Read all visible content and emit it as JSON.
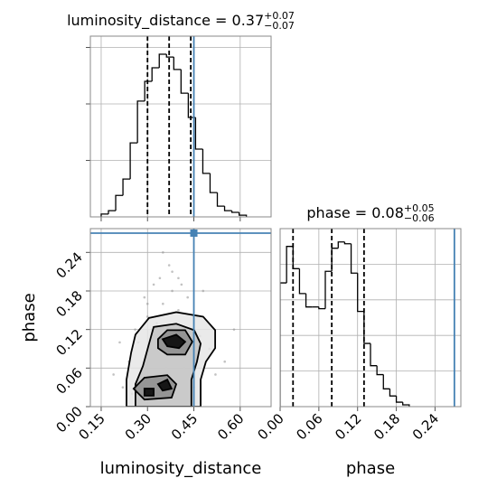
{
  "chart_data": [
    {
      "type": "histogram",
      "title": "luminosity_distance = 0.37",
      "title_sup": "+0.07",
      "title_sub": "−0.07",
      "bins": [
        0.15,
        0.1735,
        0.197,
        0.2205,
        0.244,
        0.2675,
        0.291,
        0.3145,
        0.338,
        0.3615,
        0.385,
        0.4085,
        0.432,
        0.4555,
        0.479,
        0.5025,
        0.526,
        0.5495,
        0.573,
        0.5965,
        0.62
      ],
      "values": [
        0.05,
        0.11,
        0.38,
        0.67,
        1.31,
        2.05,
        2.4,
        2.64,
        2.88,
        2.83,
        2.61,
        2.19,
        1.76,
        1.2,
        0.77,
        0.43,
        0.19,
        0.11,
        0.08,
        0.03
      ],
      "color": "#000000",
      "quantiles": [
        0.3,
        0.37,
        0.44
      ],
      "truth": 0.45,
      "truth_color": "#4682b4",
      "xlim": [
        0.115,
        0.7
      ],
      "ylim": [
        0,
        3.2
      ],
      "xticks": [
        0.15,
        0.3,
        0.45,
        0.6
      ],
      "yticks": [
        1,
        2,
        3
      ],
      "grid": true
    },
    {
      "type": "scatter",
      "xlabel": "luminosity_distance",
      "ylabel": "phase",
      "x": [
        0.25,
        0.28,
        0.31,
        0.33,
        0.35,
        0.38,
        0.4,
        0.42,
        0.27,
        0.3,
        0.34,
        0.37,
        0.41,
        0.44,
        0.47,
        0.22,
        0.24,
        0.29,
        0.32,
        0.36,
        0.39,
        0.43,
        0.46,
        0.5,
        0.52,
        0.26,
        0.33,
        0.38,
        0.45,
        0.21,
        0.55,
        0.3,
        0.35,
        0.4,
        0.48,
        0.28,
        0.37,
        0.42,
        0.19,
        0.58
      ],
      "y": [
        0.02,
        0.05,
        0.09,
        0.13,
        0.16,
        0.18,
        0.15,
        0.12,
        0.1,
        0.14,
        0.2,
        0.22,
        0.19,
        0.08,
        0.11,
        0.03,
        0.07,
        0.17,
        0.19,
        0.06,
        0.04,
        0.17,
        0.14,
        0.09,
        0.05,
        0.12,
        0.01,
        0.21,
        0.03,
        0.1,
        0.07,
        0.16,
        0.24,
        0.2,
        0.18,
        0.01,
        0.08,
        0.06,
        0.05,
        0.12
      ],
      "color": "#9a9a9a",
      "contours": [
        {
          "x": [
            0.232,
            0.232,
            0.247,
            0.261,
            0.305,
            0.393,
            0.48,
            0.519,
            0.519,
            0.489,
            0.472,
            0.472
          ],
          "y": [
            0,
            0.042,
            0.084,
            0.112,
            0.138,
            0.147,
            0.14,
            0.119,
            0.091,
            0.07,
            0.042,
            0
          ],
          "fill": "#e6e6e6"
        },
        {
          "x": [
            0.261,
            0.261,
            0.285,
            0.305,
            0.32,
            0.393,
            0.451,
            0.472,
            0.46,
            0.442,
            0.442
          ],
          "y": [
            0,
            0.035,
            0.063,
            0.098,
            0.124,
            0.129,
            0.119,
            0.098,
            0.07,
            0.042,
            0
          ],
          "fill": "#c4c4c4"
        },
        {
          "x": [
            0.334,
            0.364,
            0.422,
            0.445,
            0.422,
            0.364,
            0.334
          ],
          "y": [
            0.105,
            0.119,
            0.119,
            0.101,
            0.081,
            0.081,
            0.091
          ],
          "fill": "#8c8c8c"
        },
        {
          "x": [
            0.255,
            0.29,
            0.364,
            0.393,
            0.378,
            0.29
          ],
          "y": [
            0.028,
            0.045,
            0.049,
            0.035,
            0.014,
            0.011
          ],
          "fill": "#8c8c8c"
        },
        {
          "x": [
            0.349,
            0.393,
            0.422,
            0.402,
            0.364
          ],
          "y": [
            0.105,
            0.112,
            0.101,
            0.091,
            0.094
          ],
          "fill": "#000000"
        },
        {
          "x": [
            0.334,
            0.364,
            0.378,
            0.349
          ],
          "y": [
            0.035,
            0.042,
            0.028,
            0.025
          ],
          "fill": "#000000"
        },
        {
          "x": [
            0.29,
            0.32,
            0.32,
            0.29
          ],
          "y": [
            0.028,
            0.028,
            0.017,
            0.017
          ],
          "fill": "#000000"
        }
      ],
      "truth_x": 0.45,
      "truth_y": 0.27,
      "truth_color": "#4682b4",
      "xlim": [
        0.115,
        0.7
      ],
      "ylim": [
        0,
        0.277
      ],
      "xticks": [
        0.15,
        {
          "value": 0.3,
          "label": "0.30"
        },
        0.45,
        {
          "value": 0.6,
          "label": "0.60"
        }
      ],
      "yticks": [
        {
          "value": 0,
          "label": "0.00"
        },
        0.06,
        0.12,
        0.18,
        0.24
      ],
      "grid": true
    },
    {
      "type": "histogram",
      "xlabel": "phase",
      "title": "phase = 0.08",
      "title_sup": "+0.05",
      "title_sub": "−0.06",
      "bins": [
        0,
        0.01,
        0.02,
        0.03,
        0.04,
        0.05,
        0.06,
        0.07,
        0.08,
        0.09,
        0.1,
        0.11,
        0.12,
        0.13,
        0.14,
        0.15,
        0.16,
        0.17,
        0.18,
        0.19,
        0.2
      ],
      "values": [
        1.39,
        1.8,
        1.55,
        1.27,
        1.12,
        1.12,
        1.1,
        1.52,
        1.78,
        1.85,
        1.83,
        1.5,
        1.07,
        0.71,
        0.46,
        0.36,
        0.2,
        0.12,
        0.05,
        0.02
      ],
      "color": "#000000",
      "quantiles": [
        0.02,
        0.08,
        0.13
      ],
      "truth": 0.27,
      "truth_color": "#4682b4",
      "xlim": [
        0,
        0.28
      ],
      "ylim": [
        0,
        2
      ],
      "xticks": [
        {
          "value": 0,
          "label": "0.00"
        },
        0.06,
        0.12,
        0.18,
        0.24
      ],
      "yticks": [
        0.4,
        0.8,
        1.2,
        1.6
      ],
      "grid": true
    }
  ]
}
